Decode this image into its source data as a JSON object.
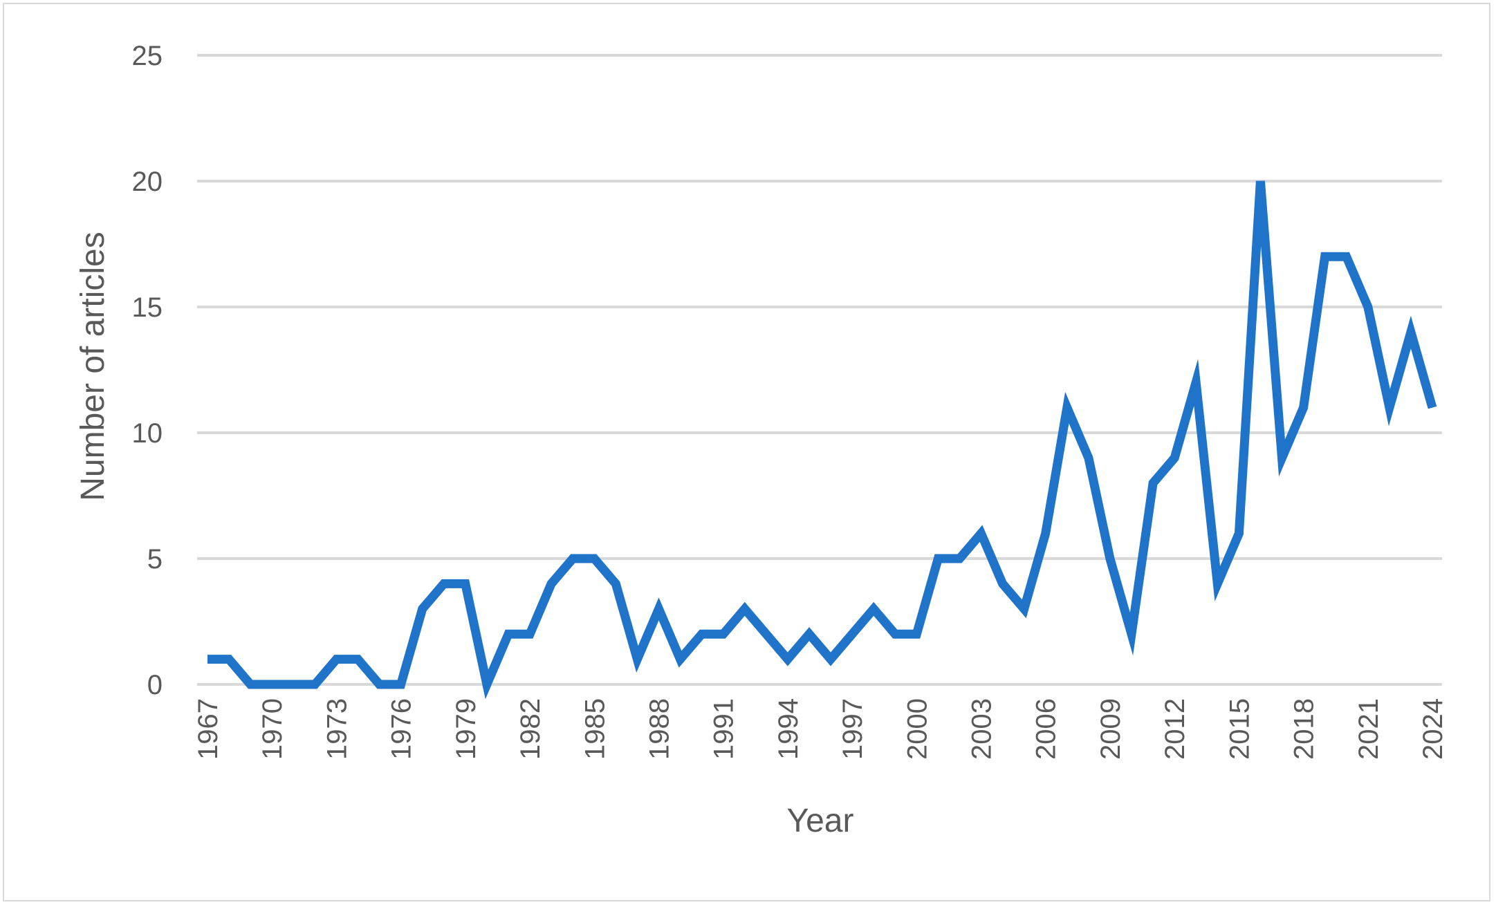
{
  "chart_data": {
    "type": "line",
    "title": "",
    "xlabel": "Year",
    "ylabel": "Number of articles",
    "ylim": [
      0,
      25
    ],
    "yticks": [
      "0",
      "5",
      "10",
      "15",
      "20",
      "25"
    ],
    "grid": true,
    "line_color": "#1f73c9",
    "grid_color": "#d9d9d9",
    "text_color": "#595959",
    "x": [
      1967,
      1968,
      1969,
      1970,
      1971,
      1972,
      1973,
      1974,
      1975,
      1976,
      1977,
      1978,
      1979,
      1980,
      1981,
      1982,
      1983,
      1984,
      1985,
      1986,
      1987,
      1988,
      1989,
      1990,
      1991,
      1992,
      1993,
      1994,
      1995,
      1996,
      1997,
      1998,
      1999,
      2000,
      2001,
      2002,
      2003,
      2004,
      2005,
      2006,
      2007,
      2008,
      2009,
      2010,
      2011,
      2012,
      2013,
      2014,
      2015,
      2016,
      2017,
      2018,
      2019,
      2020,
      2021,
      2022,
      2023,
      2024
    ],
    "xtick_labels": [
      "1967",
      "1970",
      "1973",
      "1976",
      "1979",
      "1982",
      "1985",
      "1988",
      "1991",
      "1994",
      "1997",
      "2000",
      "2003",
      "2006",
      "2009",
      "2012",
      "2015",
      "2018",
      "2021",
      "2024"
    ],
    "series": [
      {
        "values": [
          1,
          1,
          0,
          0,
          0,
          0,
          1,
          1,
          0,
          0,
          3,
          4,
          4,
          0,
          2,
          2,
          4,
          5,
          5,
          4,
          1,
          3,
          1,
          2,
          2,
          3,
          2,
          1,
          2,
          1,
          2,
          3,
          2,
          2,
          5,
          5,
          6,
          4,
          3,
          6,
          11,
          9,
          5,
          2,
          8,
          9,
          12,
          4,
          6,
          20,
          9,
          11,
          17,
          17,
          15,
          11,
          14,
          11
        ]
      }
    ]
  }
}
